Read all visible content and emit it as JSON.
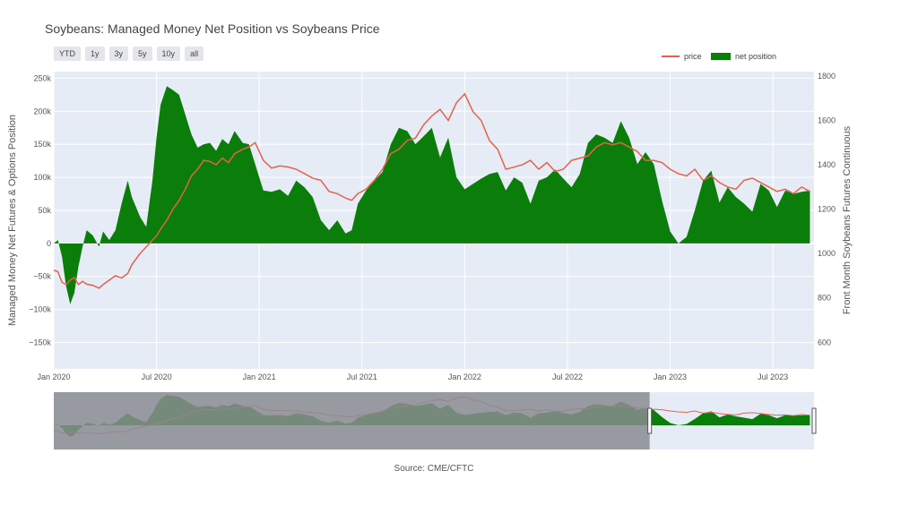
{
  "title": "Soybeans: Managed Money Net Position vs Soybeans Price",
  "range_buttons": [
    "YTD",
    "1y",
    "3y",
    "5y",
    "10y",
    "all"
  ],
  "source": "Source: CME/CFTC",
  "colors": {
    "price": "#e8604c",
    "net": "#0a7d0a",
    "plot_bg": "#e5ecf6",
    "rangeslider_mask": "#8a8c90"
  },
  "chart_data": {
    "type": "area",
    "legend": {
      "placement": "top-right",
      "entries": [
        "price",
        "net position"
      ]
    },
    "xlim": [
      2020.0,
      2023.7
    ],
    "x_ticks": [
      {
        "x": 2020.0,
        "label": "Jan 2020"
      },
      {
        "x": 2020.5,
        "label": "Jul 2020"
      },
      {
        "x": 2021.0,
        "label": "Jan 2021"
      },
      {
        "x": 2021.5,
        "label": "Jul 2021"
      },
      {
        "x": 2022.0,
        "label": "Jan 2022"
      },
      {
        "x": 2022.5,
        "label": "Jul 2022"
      },
      {
        "x": 2023.0,
        "label": "Jan 2023"
      },
      {
        "x": 2023.5,
        "label": "Jul 2023"
      }
    ],
    "y_left": {
      "label": "Managed Money Net Futures & Options Position",
      "ylim": [
        -190000,
        260000
      ],
      "ticks": [
        {
          "v": 250000,
          "label": "250k"
        },
        {
          "v": 200000,
          "label": "200k"
        },
        {
          "v": 150000,
          "label": "150k"
        },
        {
          "v": 100000,
          "label": "100k"
        },
        {
          "v": 50000,
          "label": "50k"
        },
        {
          "v": 0,
          "label": "0"
        },
        {
          "v": -50000,
          "label": "−50k"
        },
        {
          "v": -100000,
          "label": "−100k"
        },
        {
          "v": -150000,
          "label": "−150k"
        }
      ]
    },
    "y_right": {
      "label": "Front Month Soybeans Futures Continuous",
      "ylim": [
        480,
        1820
      ],
      "ticks": [
        {
          "v": 1800,
          "label": "1800"
        },
        {
          "v": 1600,
          "label": "1600"
        },
        {
          "v": 1400,
          "label": "1400"
        },
        {
          "v": 1200,
          "label": "1200"
        },
        {
          "v": 1000,
          "label": "1000"
        },
        {
          "v": 800,
          "label": "800"
        },
        {
          "v": 600,
          "label": "600"
        }
      ]
    },
    "series": [
      {
        "name": "net position",
        "axis": "left",
        "x": [
          2020.0,
          2020.02,
          2020.04,
          2020.06,
          2020.08,
          2020.1,
          2020.12,
          2020.14,
          2020.16,
          2020.19,
          2020.22,
          2020.24,
          2020.27,
          2020.3,
          2020.33,
          2020.36,
          2020.38,
          2020.42,
          2020.45,
          2020.48,
          2020.5,
          2020.52,
          2020.55,
          2020.58,
          2020.61,
          2020.64,
          2020.67,
          2020.7,
          2020.73,
          2020.76,
          2020.79,
          2020.82,
          2020.85,
          2020.88,
          2020.92,
          2020.95,
          2020.98,
          2021.02,
          2021.06,
          2021.1,
          2021.14,
          2021.18,
          2021.22,
          2021.26,
          2021.3,
          2021.34,
          2021.38,
          2021.42,
          2021.45,
          2021.48,
          2021.52,
          2021.56,
          2021.6,
          2021.64,
          2021.68,
          2021.72,
          2021.76,
          2021.8,
          2021.84,
          2021.88,
          2021.92,
          2021.96,
          2022.0,
          2022.04,
          2022.08,
          2022.12,
          2022.16,
          2022.2,
          2022.24,
          2022.28,
          2022.32,
          2022.36,
          2022.4,
          2022.44,
          2022.48,
          2022.52,
          2022.56,
          2022.6,
          2022.64,
          2022.68,
          2022.72,
          2022.76,
          2022.8,
          2022.84,
          2022.88,
          2022.92,
          2022.96,
          2023.0,
          2023.04,
          2023.08,
          2023.12,
          2023.16,
          2023.2,
          2023.24,
          2023.28,
          2023.32,
          2023.36,
          2023.4,
          2023.44,
          2023.48,
          2023.52,
          2023.56,
          2023.6,
          2023.64,
          2023.68
        ],
        "values": [
          0,
          5000,
          -20000,
          -65000,
          -92000,
          -75000,
          -35000,
          -5000,
          20000,
          12000,
          -5000,
          18000,
          5000,
          20000,
          60000,
          95000,
          70000,
          40000,
          25000,
          95000,
          160000,
          210000,
          238000,
          232000,
          225000,
          195000,
          165000,
          145000,
          150000,
          152000,
          140000,
          158000,
          150000,
          170000,
          152000,
          150000,
          120000,
          80000,
          78000,
          82000,
          72000,
          95000,
          85000,
          70000,
          35000,
          20000,
          35000,
          15000,
          20000,
          60000,
          80000,
          95000,
          108000,
          150000,
          175000,
          170000,
          150000,
          162000,
          175000,
          130000,
          160000,
          100000,
          82000,
          90000,
          98000,
          105000,
          108000,
          80000,
          100000,
          92000,
          60000,
          95000,
          100000,
          112000,
          98000,
          85000,
          105000,
          152000,
          165000,
          160000,
          152000,
          185000,
          160000,
          120000,
          138000,
          120000,
          65000,
          18000,
          0,
          10000,
          50000,
          95000,
          110000,
          62000,
          85000,
          70000,
          60000,
          48000,
          90000,
          80000,
          55000,
          80000,
          75000,
          78000,
          80000
        ]
      },
      {
        "name": "price",
        "axis": "right",
        "x": [
          2020.0,
          2020.02,
          2020.04,
          2020.06,
          2020.08,
          2020.1,
          2020.12,
          2020.14,
          2020.16,
          2020.19,
          2020.22,
          2020.24,
          2020.27,
          2020.3,
          2020.33,
          2020.36,
          2020.38,
          2020.42,
          2020.45,
          2020.48,
          2020.5,
          2020.52,
          2020.55,
          2020.58,
          2020.61,
          2020.64,
          2020.67,
          2020.7,
          2020.73,
          2020.76,
          2020.79,
          2020.82,
          2020.85,
          2020.88,
          2020.92,
          2020.95,
          2020.98,
          2021.02,
          2021.06,
          2021.1,
          2021.14,
          2021.18,
          2021.22,
          2021.26,
          2021.3,
          2021.34,
          2021.38,
          2021.42,
          2021.45,
          2021.48,
          2021.52,
          2021.56,
          2021.6,
          2021.64,
          2021.68,
          2021.72,
          2021.76,
          2021.8,
          2021.84,
          2021.88,
          2021.92,
          2021.96,
          2022.0,
          2022.04,
          2022.08,
          2022.12,
          2022.16,
          2022.2,
          2022.24,
          2022.28,
          2022.32,
          2022.36,
          2022.4,
          2022.44,
          2022.48,
          2022.52,
          2022.56,
          2022.6,
          2022.64,
          2022.68,
          2022.72,
          2022.76,
          2022.8,
          2022.84,
          2022.88,
          2022.92,
          2022.96,
          2023.0,
          2023.04,
          2023.08,
          2023.12,
          2023.16,
          2023.2,
          2023.24,
          2023.28,
          2023.32,
          2023.36,
          2023.4,
          2023.44,
          2023.48,
          2023.52,
          2023.56,
          2023.6,
          2023.64,
          2023.68
        ],
        "values": [
          925,
          918,
          870,
          860,
          880,
          892,
          860,
          875,
          862,
          857,
          844,
          860,
          880,
          900,
          890,
          910,
          950,
          1000,
          1030,
          1060,
          1080,
          1110,
          1150,
          1200,
          1240,
          1290,
          1350,
          1380,
          1420,
          1415,
          1400,
          1430,
          1410,
          1450,
          1470,
          1480,
          1500,
          1420,
          1385,
          1395,
          1390,
          1380,
          1360,
          1340,
          1330,
          1280,
          1270,
          1250,
          1240,
          1270,
          1290,
          1330,
          1380,
          1450,
          1470,
          1510,
          1520,
          1580,
          1620,
          1650,
          1600,
          1680,
          1720,
          1640,
          1600,
          1510,
          1470,
          1380,
          1390,
          1400,
          1420,
          1380,
          1410,
          1370,
          1380,
          1420,
          1430,
          1440,
          1480,
          1500,
          1490,
          1500,
          1480,
          1460,
          1420,
          1420,
          1410,
          1380,
          1360,
          1350,
          1380,
          1330,
          1350,
          1320,
          1300,
          1290,
          1330,
          1340,
          1320,
          1300,
          1280,
          1290,
          1270,
          1300,
          1280
        ]
      }
    ],
    "rangeslider": {
      "selected_range": [
        2022.9,
        2023.7
      ]
    }
  }
}
